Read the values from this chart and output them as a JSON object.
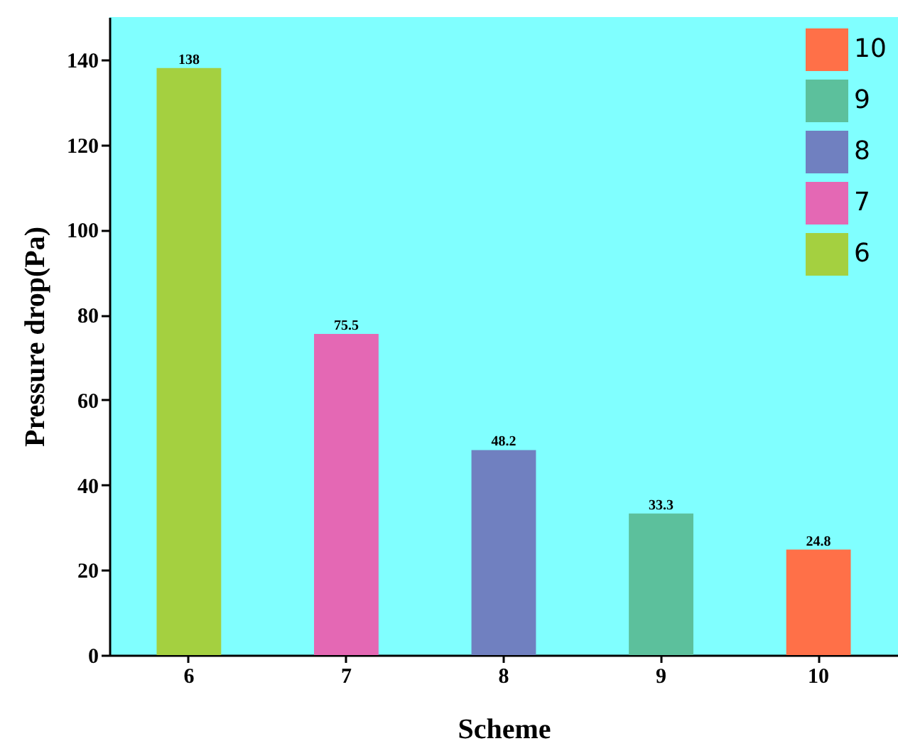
{
  "chart_data": {
    "type": "bar",
    "xlabel": "Scheme",
    "ylabel": "Pressure drop(Pa)",
    "categories": [
      "6",
      "7",
      "8",
      "9",
      "10"
    ],
    "series": [
      {
        "name": "10",
        "color": "#ff7048",
        "values": [
          null,
          null,
          null,
          null,
          24.8
        ]
      },
      {
        "name": "9",
        "color": "#5cc09c",
        "values": [
          null,
          null,
          null,
          33.3,
          null
        ]
      },
      {
        "name": "8",
        "color": "#7080c0",
        "values": [
          null,
          null,
          48.2,
          null,
          null
        ]
      },
      {
        "name": "7",
        "color": "#e468b4",
        "values": [
          null,
          75.5,
          null,
          null,
          null
        ]
      },
      {
        "name": "6",
        "color": "#a4d040",
        "values": [
          138,
          null,
          null,
          null,
          null
        ]
      }
    ],
    "ylim": [
      0,
      150
    ],
    "yticks": [
      0,
      20,
      40,
      60,
      80,
      100,
      120,
      140
    ],
    "data_labels": true,
    "legend": "top right",
    "grid": false
  }
}
